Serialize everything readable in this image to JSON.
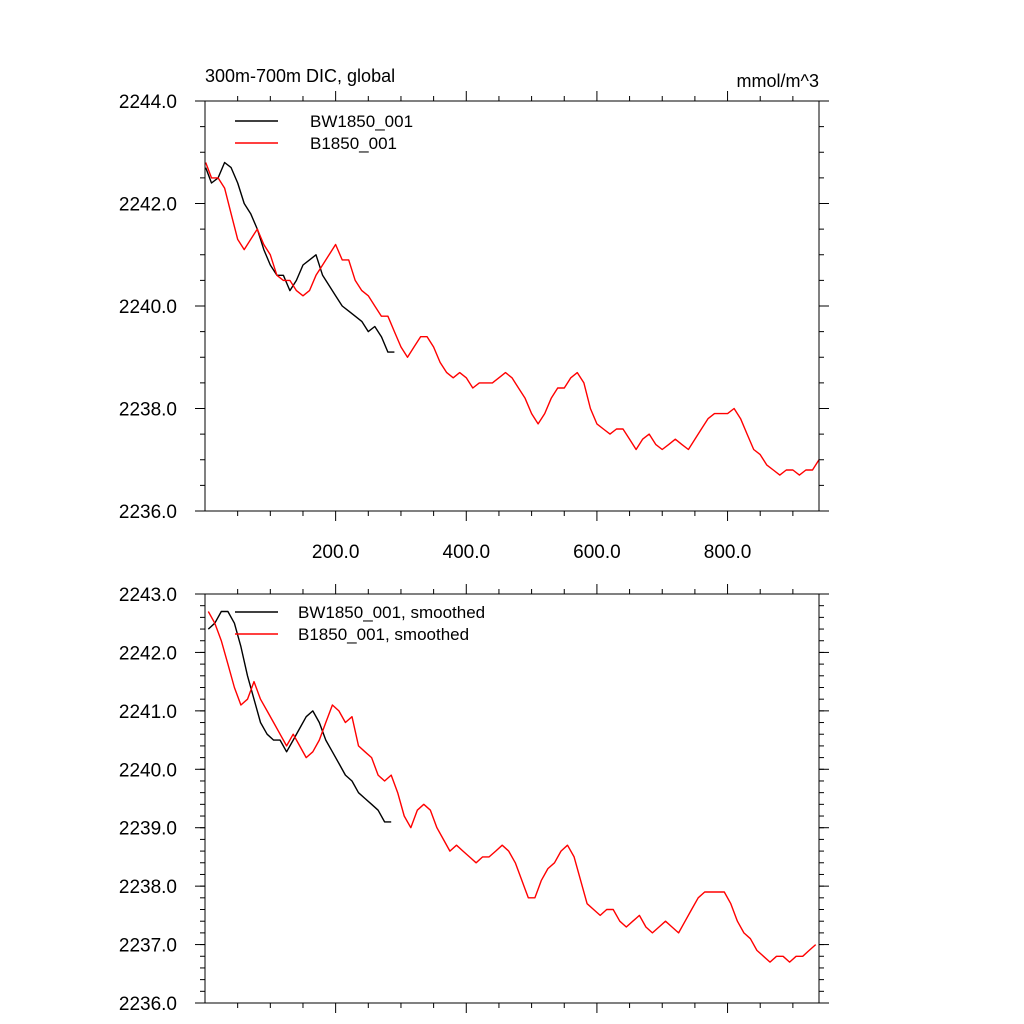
{
  "chart_data": [
    {
      "type": "line",
      "title": "300m-700m DIC, global",
      "units": "mmol/m^3",
      "xlim": [
        0,
        940
      ],
      "ylim": [
        2236.0,
        2244.0
      ],
      "x_tick_labels": [
        {
          "value": 200,
          "label": "200.0"
        },
        {
          "value": 400,
          "label": "400.0"
        },
        {
          "value": 600,
          "label": "600.0"
        },
        {
          "value": 800,
          "label": "800.0"
        }
      ],
      "y_tick_labels": [
        {
          "value": 2236.0,
          "label": "2236.0"
        },
        {
          "value": 2238.0,
          "label": "2238.0"
        },
        {
          "value": 2240.0,
          "label": "2240.0"
        },
        {
          "value": 2242.0,
          "label": "2242.0"
        },
        {
          "value": 2244.0,
          "label": "2244.0"
        }
      ],
      "legend": "top-left",
      "series": [
        {
          "name": "BW1850_001",
          "color": "#000000",
          "x": [
            1,
            10,
            20,
            30,
            40,
            50,
            60,
            70,
            80,
            90,
            100,
            110,
            120,
            130,
            140,
            150,
            160,
            170,
            180,
            190,
            200,
            210,
            220,
            230,
            240,
            250,
            260,
            270,
            280,
            290
          ],
          "y": [
            2242.7,
            2242.4,
            2242.5,
            2242.8,
            2242.7,
            2242.4,
            2242.0,
            2241.8,
            2241.5,
            2241.1,
            2240.8,
            2240.6,
            2240.6,
            2240.3,
            2240.5,
            2240.8,
            2240.9,
            2241.0,
            2240.6,
            2240.4,
            2240.2,
            2240.0,
            2239.9,
            2239.8,
            2239.7,
            2239.5,
            2239.6,
            2239.4,
            2239.1,
            2239.1
          ]
        },
        {
          "name": "B1850_001",
          "color": "#ff0000",
          "x": [
            1,
            10,
            20,
            30,
            40,
            50,
            60,
            70,
            80,
            90,
            100,
            110,
            120,
            130,
            140,
            150,
            160,
            170,
            180,
            190,
            200,
            210,
            220,
            230,
            240,
            250,
            260,
            270,
            280,
            290,
            300,
            310,
            320,
            330,
            340,
            350,
            360,
            370,
            380,
            390,
            400,
            410,
            420,
            430,
            440,
            450,
            460,
            470,
            480,
            490,
            500,
            510,
            520,
            530,
            540,
            550,
            560,
            570,
            580,
            590,
            600,
            610,
            620,
            630,
            640,
            650,
            660,
            670,
            680,
            690,
            700,
            710,
            720,
            730,
            740,
            750,
            760,
            770,
            780,
            790,
            800,
            810,
            820,
            830,
            840,
            850,
            860,
            870,
            880,
            890,
            900,
            910,
            920,
            930,
            940
          ],
          "y": [
            2242.8,
            2242.5,
            2242.5,
            2242.3,
            2241.8,
            2241.3,
            2241.1,
            2241.3,
            2241.5,
            2241.2,
            2241.0,
            2240.6,
            2240.5,
            2240.5,
            2240.3,
            2240.2,
            2240.3,
            2240.6,
            2240.8,
            2241.0,
            2241.2,
            2240.9,
            2240.9,
            2240.5,
            2240.3,
            2240.2,
            2240.0,
            2239.8,
            2239.8,
            2239.5,
            2239.2,
            2239.0,
            2239.2,
            2239.4,
            2239.4,
            2239.2,
            2238.9,
            2238.7,
            2238.6,
            2238.7,
            2238.6,
            2238.4,
            2238.5,
            2238.5,
            2238.5,
            2238.6,
            2238.7,
            2238.6,
            2238.4,
            2238.2,
            2237.9,
            2237.7,
            2237.9,
            2238.2,
            2238.4,
            2238.4,
            2238.6,
            2238.7,
            2238.5,
            2238.0,
            2237.7,
            2237.6,
            2237.5,
            2237.6,
            2237.6,
            2237.4,
            2237.2,
            2237.4,
            2237.5,
            2237.3,
            2237.2,
            2237.3,
            2237.4,
            2237.3,
            2237.2,
            2237.4,
            2237.6,
            2237.8,
            2237.9,
            2237.9,
            2237.9,
            2238.0,
            2237.8,
            2237.5,
            2237.2,
            2237.1,
            2236.9,
            2236.8,
            2236.7,
            2236.8,
            2236.8,
            2236.7,
            2236.8,
            2236.8,
            2237.0
          ]
        }
      ]
    },
    {
      "type": "line",
      "xlim": [
        0,
        940
      ],
      "ylim": [
        2236.0,
        2243.0
      ],
      "y_tick_labels": [
        {
          "value": 2236.0,
          "label": "2236.0"
        },
        {
          "value": 2237.0,
          "label": "2237.0"
        },
        {
          "value": 2238.0,
          "label": "2238.0"
        },
        {
          "value": 2239.0,
          "label": "2239.0"
        },
        {
          "value": 2240.0,
          "label": "2240.0"
        },
        {
          "value": 2241.0,
          "label": "2241.0"
        },
        {
          "value": 2242.0,
          "label": "2242.0"
        },
        {
          "value": 2243.0,
          "label": "2243.0"
        }
      ],
      "legend": "top-left",
      "series": [
        {
          "name": "BW1850_001, smoothed",
          "color": "#000000",
          "x": [
            5,
            15,
            25,
            35,
            45,
            55,
            65,
            75,
            85,
            95,
            105,
            115,
            125,
            135,
            145,
            155,
            165,
            175,
            185,
            195,
            205,
            215,
            225,
            235,
            245,
            255,
            265,
            275,
            285
          ],
          "y": [
            2242.4,
            2242.5,
            2242.7,
            2242.7,
            2242.5,
            2242.1,
            2241.6,
            2241.2,
            2240.8,
            2240.6,
            2240.5,
            2240.5,
            2240.3,
            2240.5,
            2240.7,
            2240.9,
            2241.0,
            2240.8,
            2240.5,
            2240.3,
            2240.1,
            2239.9,
            2239.8,
            2239.6,
            2239.5,
            2239.4,
            2239.3,
            2239.1,
            2239.1
          ]
        },
        {
          "name": "B1850_001, smoothed",
          "color": "#ff0000",
          "x": [
            5,
            15,
            25,
            35,
            45,
            55,
            65,
            75,
            85,
            95,
            105,
            115,
            125,
            135,
            145,
            155,
            165,
            175,
            185,
            195,
            205,
            215,
            225,
            235,
            245,
            255,
            265,
            275,
            285,
            295,
            305,
            315,
            325,
            335,
            345,
            355,
            365,
            375,
            385,
            395,
            405,
            415,
            425,
            435,
            445,
            455,
            465,
            475,
            485,
            495,
            505,
            515,
            525,
            535,
            545,
            555,
            565,
            575,
            585,
            595,
            605,
            615,
            625,
            635,
            645,
            655,
            665,
            675,
            685,
            695,
            705,
            715,
            725,
            735,
            745,
            755,
            765,
            775,
            785,
            795,
            805,
            815,
            825,
            835,
            845,
            855,
            865,
            875,
            885,
            895,
            905,
            915,
            925,
            935
          ],
          "y": [
            2242.7,
            2242.5,
            2242.2,
            2241.8,
            2241.4,
            2241.1,
            2241.2,
            2241.5,
            2241.2,
            2241.0,
            2240.8,
            2240.6,
            2240.4,
            2240.6,
            2240.4,
            2240.2,
            2240.3,
            2240.5,
            2240.8,
            2241.1,
            2241.0,
            2240.8,
            2240.9,
            2240.4,
            2240.3,
            2240.2,
            2239.9,
            2239.8,
            2239.9,
            2239.6,
            2239.2,
            2239.0,
            2239.3,
            2239.4,
            2239.3,
            2239.0,
            2238.8,
            2238.6,
            2238.7,
            2238.6,
            2238.5,
            2238.4,
            2238.5,
            2238.5,
            2238.6,
            2238.7,
            2238.6,
            2238.4,
            2238.1,
            2237.8,
            2237.8,
            2238.1,
            2238.3,
            2238.4,
            2238.6,
            2238.7,
            2238.5,
            2238.1,
            2237.7,
            2237.6,
            2237.5,
            2237.6,
            2237.6,
            2237.4,
            2237.3,
            2237.4,
            2237.5,
            2237.3,
            2237.2,
            2237.3,
            2237.4,
            2237.3,
            2237.2,
            2237.4,
            2237.6,
            2237.8,
            2237.9,
            2237.9,
            2237.9,
            2237.9,
            2237.7,
            2237.4,
            2237.2,
            2237.1,
            2236.9,
            2236.8,
            2236.7,
            2236.8,
            2236.8,
            2236.7,
            2236.8,
            2236.8,
            2236.9,
            2237.0
          ]
        }
      ]
    }
  ]
}
